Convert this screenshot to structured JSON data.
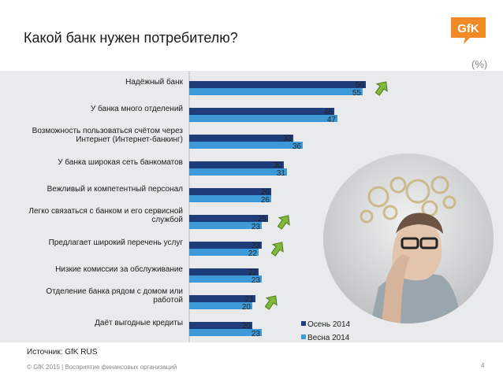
{
  "slide": {
    "title": "Какой банк нужен потребителю?",
    "unit": "(%)",
    "source": "Источник: GfK RUS",
    "footer": "© GfK 2015 | Восприятие финансовых организаций",
    "page_number": "4",
    "logo_text": "GfK"
  },
  "colors": {
    "series1": "#1f3d7a",
    "series2": "#3d9ad8",
    "band": "#e9eaeb",
    "arrow": "#7fb83a",
    "logo": "#f08a24"
  },
  "chart_data": {
    "type": "bar",
    "orientation": "horizontal",
    "categories": [
      "Надёжный банк",
      "У банка много отделений",
      "Возможность пользоваться счётом через Интернет (Интернет-банкинг)",
      "У банка широкая сеть банкоматов",
      "Вежливый и компетентный персонал",
      "Легко связаться с банком и его сервисной службой",
      "Предлагает широкий перечень услуг",
      "Низкие комиссии за обслуживание",
      "Отделение банка рядом с домом или работой",
      "Даёт выгодные кредиты"
    ],
    "series": [
      {
        "name": "Осень 2014",
        "values": [
          56,
          46,
          33,
          30,
          26,
          25,
          23,
          22,
          21,
          20
        ]
      },
      {
        "name": "Весна 2014",
        "values": [
          55,
          47,
          36,
          31,
          26,
          23,
          22,
          23,
          20,
          23
        ]
      }
    ],
    "up_arrows": [
      true,
      false,
      false,
      false,
      false,
      true,
      true,
      false,
      true,
      false
    ],
    "legend_position": "bottom-right",
    "grid": false
  }
}
